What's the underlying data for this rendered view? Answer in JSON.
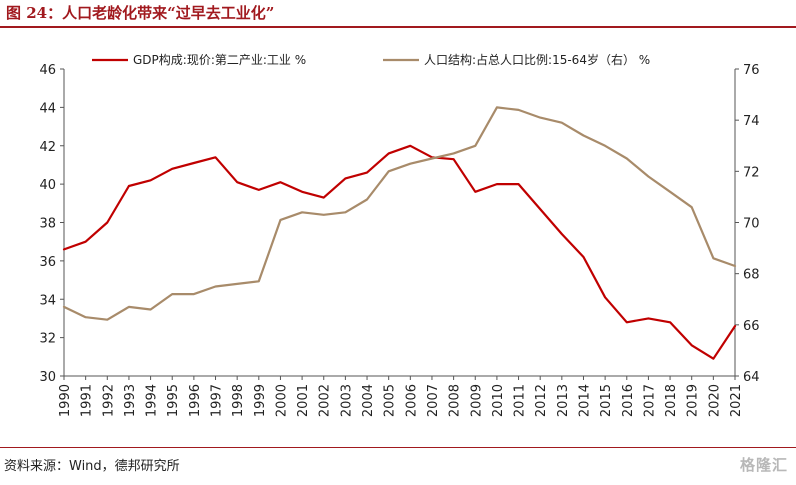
{
  "header": {
    "title": "图 24：人口老龄化带来“过早去工业化”"
  },
  "footer": {
    "source": "资料来源：Wind，德邦研究所",
    "watermark": "格隆汇"
  },
  "chart_data": {
    "type": "line",
    "title": "",
    "x": [
      1990,
      1991,
      1992,
      1993,
      1994,
      1995,
      1996,
      1997,
      1998,
      1999,
      2000,
      2001,
      2002,
      2003,
      2004,
      2005,
      2006,
      2007,
      2008,
      2009,
      2010,
      2011,
      2012,
      2013,
      2014,
      2015,
      2016,
      2017,
      2018,
      2019,
      2020,
      2021
    ],
    "x_tick_labels": [
      "1990",
      "1991",
      "1992",
      "1993",
      "1994",
      "1995",
      "1996",
      "1997",
      "1998",
      "1999",
      "2000",
      "2001",
      "2002",
      "2003",
      "2004",
      "2005",
      "2006",
      "2007",
      "2008",
      "2009",
      "2010",
      "2011",
      "2012",
      "2013",
      "2014",
      "2015",
      "2016",
      "2017",
      "2018",
      "2019",
      "2020",
      "2021"
    ],
    "y_left": {
      "range": [
        30,
        46
      ],
      "ticks": [
        30,
        32,
        34,
        36,
        38,
        40,
        42,
        44,
        46
      ]
    },
    "y_right": {
      "range": [
        64,
        76
      ],
      "ticks": [
        64,
        66,
        68,
        70,
        72,
        74,
        76
      ]
    },
    "legend_position": "top",
    "grid": false,
    "series": [
      {
        "name": "GDP构成:现价:第二产业:工业 %",
        "axis": "left",
        "color": "#c00000",
        "values": [
          36.6,
          37.0,
          38.0,
          39.9,
          40.2,
          40.8,
          41.1,
          41.4,
          40.1,
          39.7,
          40.1,
          39.6,
          39.3,
          40.3,
          40.6,
          41.6,
          42.0,
          41.4,
          41.3,
          39.6,
          40.0,
          40.0,
          38.7,
          37.4,
          36.2,
          34.1,
          32.8,
          33.0,
          32.8,
          31.6,
          30.9,
          32.6
        ]
      },
      {
        "name": "人口结构:占总人口比例:15-64岁（右） %",
        "axis": "right",
        "color": "#a88b6a",
        "values": [
          66.7,
          66.3,
          66.2,
          66.7,
          66.6,
          67.2,
          67.2,
          67.5,
          67.6,
          67.7,
          70.1,
          70.4,
          70.3,
          70.4,
          70.9,
          72.0,
          72.3,
          72.5,
          72.7,
          73.0,
          74.5,
          74.4,
          74.1,
          73.9,
          73.4,
          73.0,
          72.5,
          71.8,
          71.2,
          70.6,
          68.6,
          68.3
        ]
      }
    ]
  }
}
